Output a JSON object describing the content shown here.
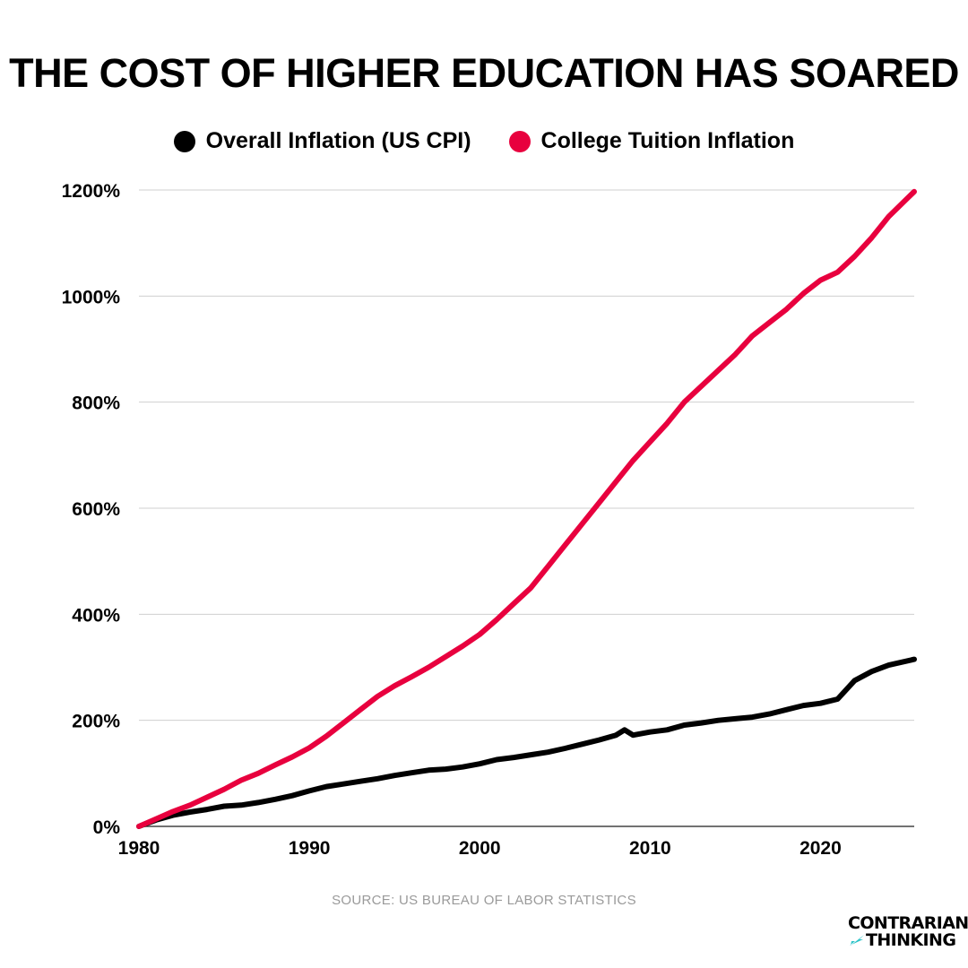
{
  "title": "THE COST OF HIGHER EDUCATION HAS SOARED",
  "source": "SOURCE: US BUREAU OF LABOR STATISTICS",
  "logo": {
    "line1": "CONTRARIAN",
    "line2": "THINKING",
    "accent_color": "#2ec4c9"
  },
  "chart_data": {
    "type": "line",
    "title": "THE COST OF HIGHER EDUCATION HAS SOARED",
    "xlabel": "",
    "ylabel": "",
    "xlim": [
      1980,
      2025.5
    ],
    "ylim": [
      0,
      1200
    ],
    "xticks": [
      {
        "value": 1980,
        "label": "1980"
      },
      {
        "value": 1990,
        "label": "1990"
      },
      {
        "value": 2000,
        "label": "2000"
      },
      {
        "value": 2010,
        "label": "2010"
      },
      {
        "value": 2020,
        "label": "2020"
      }
    ],
    "yticks": [
      {
        "value": 0,
        "label": "0%"
      },
      {
        "value": 200,
        "label": "200%"
      },
      {
        "value": 400,
        "label": "400%"
      },
      {
        "value": 600,
        "label": "600%"
      },
      {
        "value": 800,
        "label": "800%"
      },
      {
        "value": 1000,
        "label": "1000%"
      },
      {
        "value": 1200,
        "label": "1200%"
      }
    ],
    "grid": "horizontal",
    "legend_position": "top-center",
    "series": [
      {
        "name": "Overall Inflation (US CPI)",
        "color": "#000000",
        "x": [
          1980,
          1981,
          1982,
          1983,
          1984,
          1985,
          1986,
          1987,
          1988,
          1989,
          1990,
          1991,
          1992,
          1993,
          1994,
          1995,
          1996,
          1997,
          1998,
          1999,
          2000,
          2001,
          2002,
          2003,
          2004,
          2005,
          2006,
          2007,
          2008,
          2008.5,
          2009,
          2010,
          2011,
          2012,
          2013,
          2014,
          2015,
          2016,
          2017,
          2018,
          2019,
          2020,
          2021,
          2022,
          2023,
          2024,
          2025.5
        ],
        "y": [
          0,
          12,
          21,
          27,
          32,
          38,
          40,
          45,
          51,
          58,
          67,
          75,
          80,
          85,
          90,
          96,
          101,
          106,
          108,
          112,
          118,
          126,
          130,
          135,
          140,
          147,
          155,
          163,
          172,
          182,
          172,
          178,
          182,
          191,
          195,
          200,
          203,
          206,
          212,
          220,
          228,
          232,
          240,
          275,
          292,
          304,
          315
        ]
      },
      {
        "name": "College Tuition Inflation",
        "color": "#e8003e",
        "x": [
          1980,
          1981,
          1982,
          1983,
          1984,
          1985,
          1986,
          1987,
          1988,
          1989,
          1990,
          1991,
          1992,
          1993,
          1994,
          1995,
          1996,
          1997,
          1998,
          1999,
          2000,
          2001,
          2002,
          2003,
          2004,
          2005,
          2006,
          2007,
          2008,
          2009,
          2010,
          2011,
          2012,
          2013,
          2014,
          2015,
          2016,
          2017,
          2018,
          2019,
          2020,
          2021,
          2022,
          2023,
          2024,
          2025.5
        ],
        "y": [
          0,
          14,
          28,
          40,
          55,
          70,
          87,
          100,
          116,
          131,
          148,
          170,
          195,
          220,
          245,
          265,
          282,
          300,
          320,
          340,
          362,
          390,
          420,
          450,
          490,
          530,
          570,
          610,
          650,
          690,
          725,
          760,
          800,
          830,
          860,
          890,
          925,
          950,
          975,
          1005,
          1030,
          1045,
          1075,
          1110,
          1150,
          1197
        ]
      }
    ]
  }
}
